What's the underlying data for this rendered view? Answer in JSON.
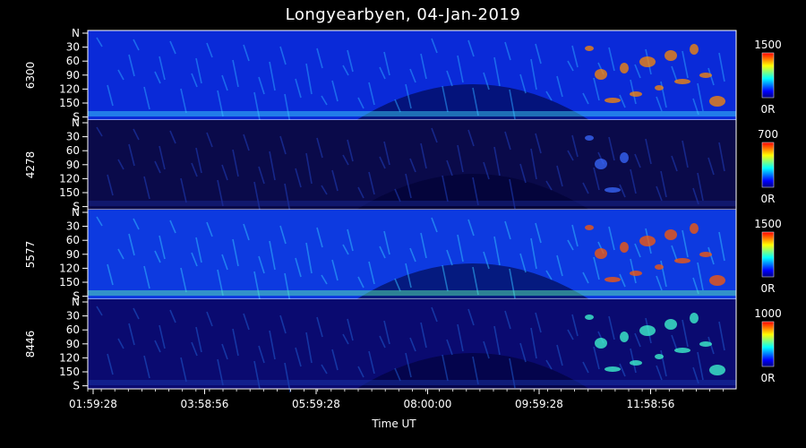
{
  "chart_data": {
    "type": "heatmap",
    "title": "Longyearbyen, 04-Jan-2019",
    "xlabel": "Time UT",
    "x_ticks": [
      "01:59:28",
      "03:58:56",
      "05:59:28",
      "08:00:00",
      "09:59:28",
      "11:58:56"
    ],
    "y_ticks": [
      "N",
      "30",
      "60",
      "90",
      "120",
      "150",
      "S"
    ],
    "panels": [
      {
        "channel": "6300",
        "cmax": "1500",
        "cmin": "0R"
      },
      {
        "channel": "4278",
        "cmax": "700",
        "cmin": "0R"
      },
      {
        "channel": "5577",
        "cmax": "1500",
        "cmin": "0R"
      },
      {
        "channel": "8446",
        "cmax": "1000",
        "cmin": "0R"
      }
    ],
    "colormap": [
      "#00007f",
      "#0000ff",
      "#0080ff",
      "#00ffff",
      "#80ff80",
      "#ffff00",
      "#ff8000",
      "#ff0000"
    ]
  }
}
